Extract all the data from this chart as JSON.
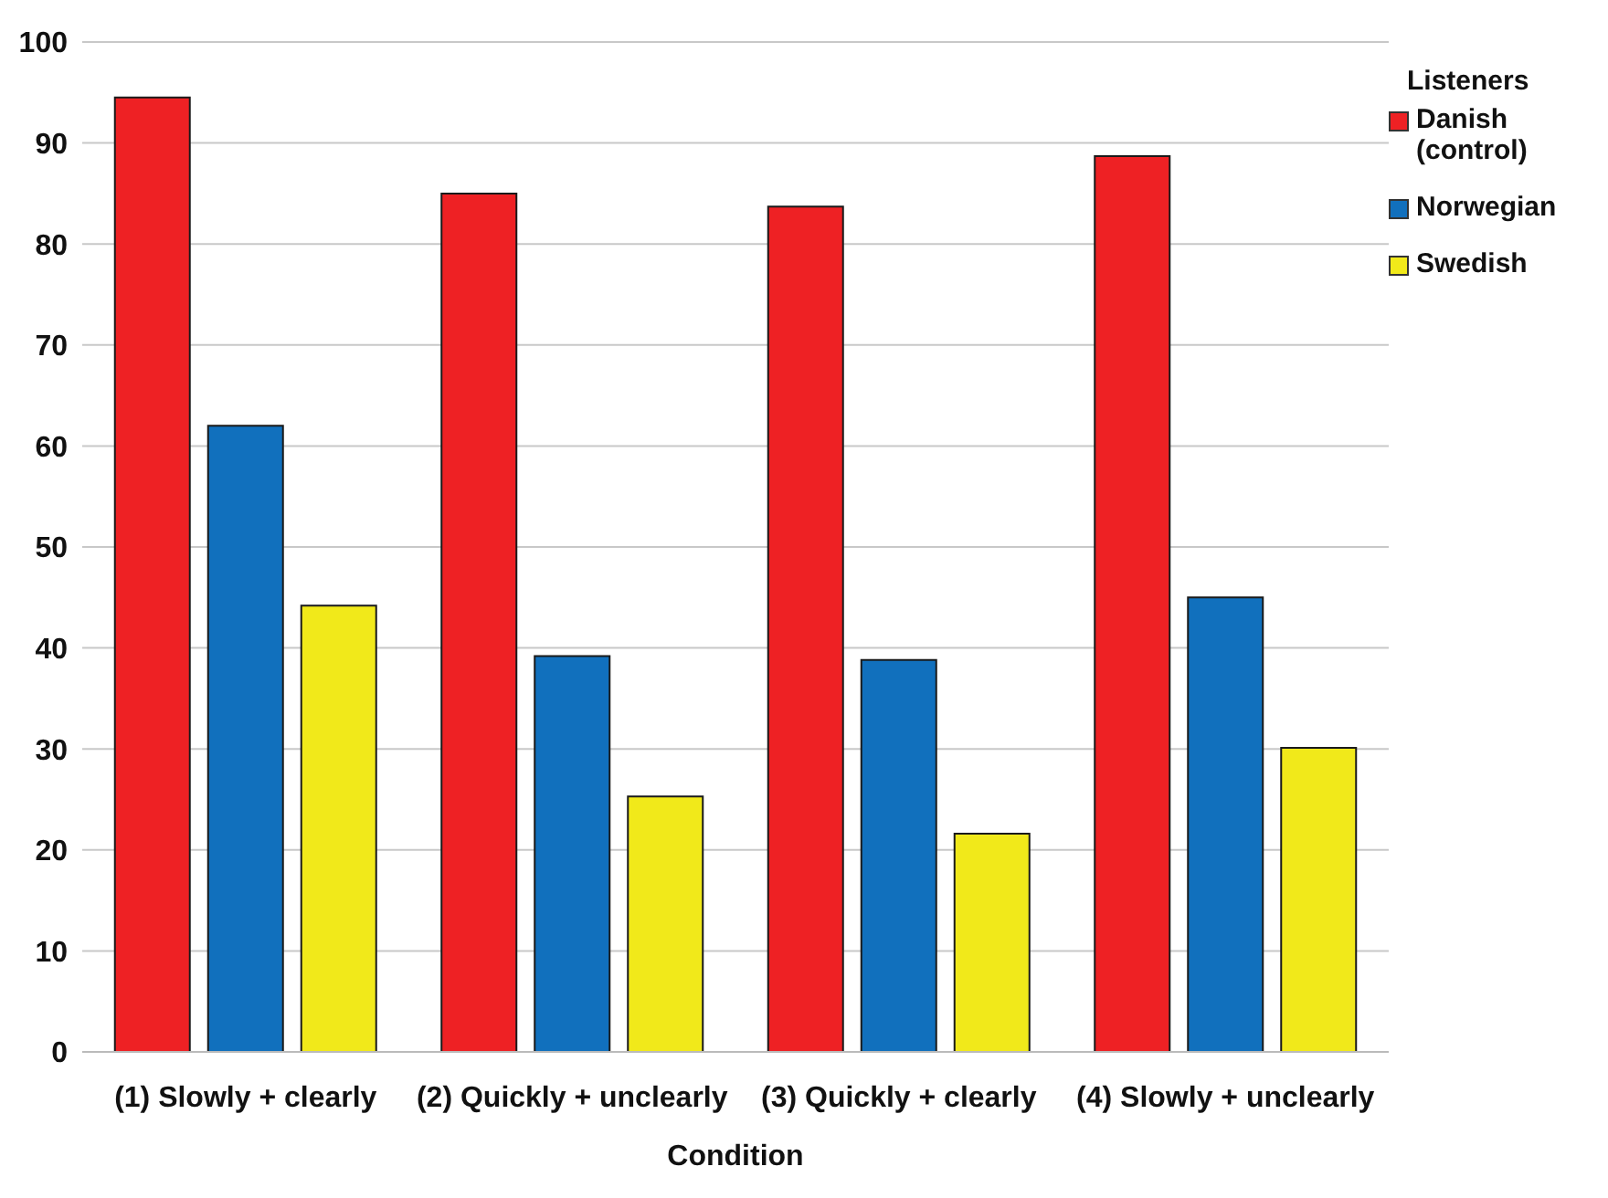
{
  "chart_data": {
    "type": "bar",
    "xlabel": "Condition",
    "legend_title": "Listeners",
    "categories": [
      "(1) Slowly + clearly",
      "(2) Quickly + unclearly",
      "(3) Quickly + clearly",
      "(4) Slowly + unclearly"
    ],
    "series": [
      {
        "name": "Danish (control)",
        "color": "#ee2124",
        "values": [
          94.5,
          85,
          83.7,
          88.7
        ]
      },
      {
        "name": "Norwegian",
        "color": "#1170bd",
        "values": [
          62,
          39.2,
          38.8,
          45
        ]
      },
      {
        "name": "Swedish",
        "color": "#f1e91a",
        "values": [
          44.2,
          25.3,
          21.6,
          30.1
        ]
      }
    ],
    "ylim": [
      0,
      100
    ],
    "yticks": [
      0,
      10,
      20,
      30,
      40,
      50,
      60,
      70,
      80,
      90,
      100
    ],
    "grid": "y",
    "legend": "top right"
  }
}
